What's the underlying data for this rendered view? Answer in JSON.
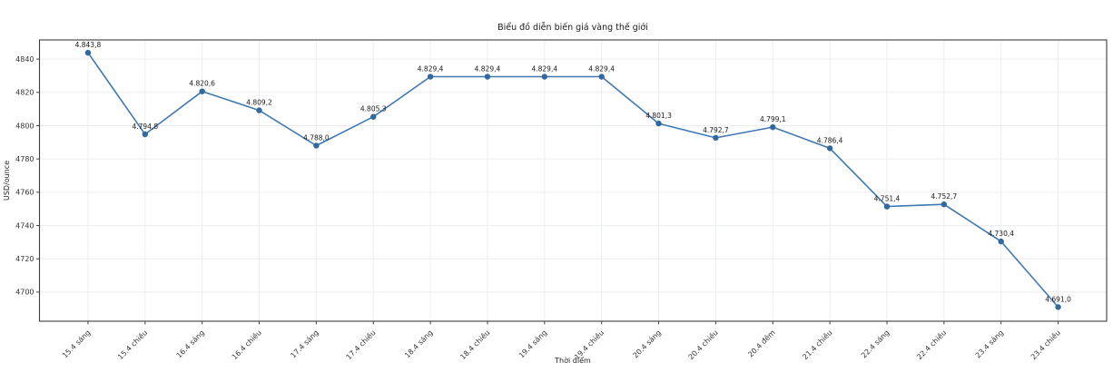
{
  "page": {
    "background": "#ffffff"
  },
  "chart_data": {
    "type": "line",
    "title": "Biểu đồ diễn biến giá vàng thế giới",
    "xlabel": "Thời điểm",
    "ylabel": "USD/ounce",
    "categories": [
      "15.4 sáng",
      "15.4 chiều",
      "16.4 sáng",
      "16.4 chiều",
      "17.4 sáng",
      "17.4 chiều",
      "18.4 sáng",
      "18.4 chiều",
      "19.4 sáng",
      "19.4 chiều",
      "20.4 sáng",
      "20.4 chiều",
      "20.4 đêm",
      "21.4 chiều",
      "22.4 sáng",
      "22.4 chiều",
      "23.4 sáng",
      "23.4 chiều"
    ],
    "values": [
      4843.8,
      4794.8,
      4820.6,
      4809.2,
      4788.0,
      4805.3,
      4829.4,
      4829.4,
      4829.4,
      4829.4,
      4801.3,
      4792.7,
      4799.1,
      4786.4,
      4751.4,
      4752.7,
      4730.4,
      4691.0
    ],
    "point_labels": [
      "4.843,8",
      "4.794,8",
      "4.820,6",
      "4.809,2",
      "4.788,0",
      "4.805,3",
      "4.829,4",
      "4.829,4",
      "4.829,4",
      "4.829,4",
      "4.801,3",
      "4.792,7",
      "4.799,1",
      "4.786,4",
      "4.751,4",
      "4.752,7",
      "4.730,4",
      "4.691,0"
    ],
    "y_ticks": [
      4840,
      4820,
      4800,
      4780,
      4760,
      4740,
      4720,
      4700
    ],
    "ylim": [
      4682.5,
      4851.5
    ],
    "grid": true,
    "legend": "none",
    "colors": {
      "line": "#3f78b2",
      "marker": "#31699f",
      "grid": "#ebeef1",
      "spine": "#3d3d3d",
      "tick": "#444444"
    }
  }
}
